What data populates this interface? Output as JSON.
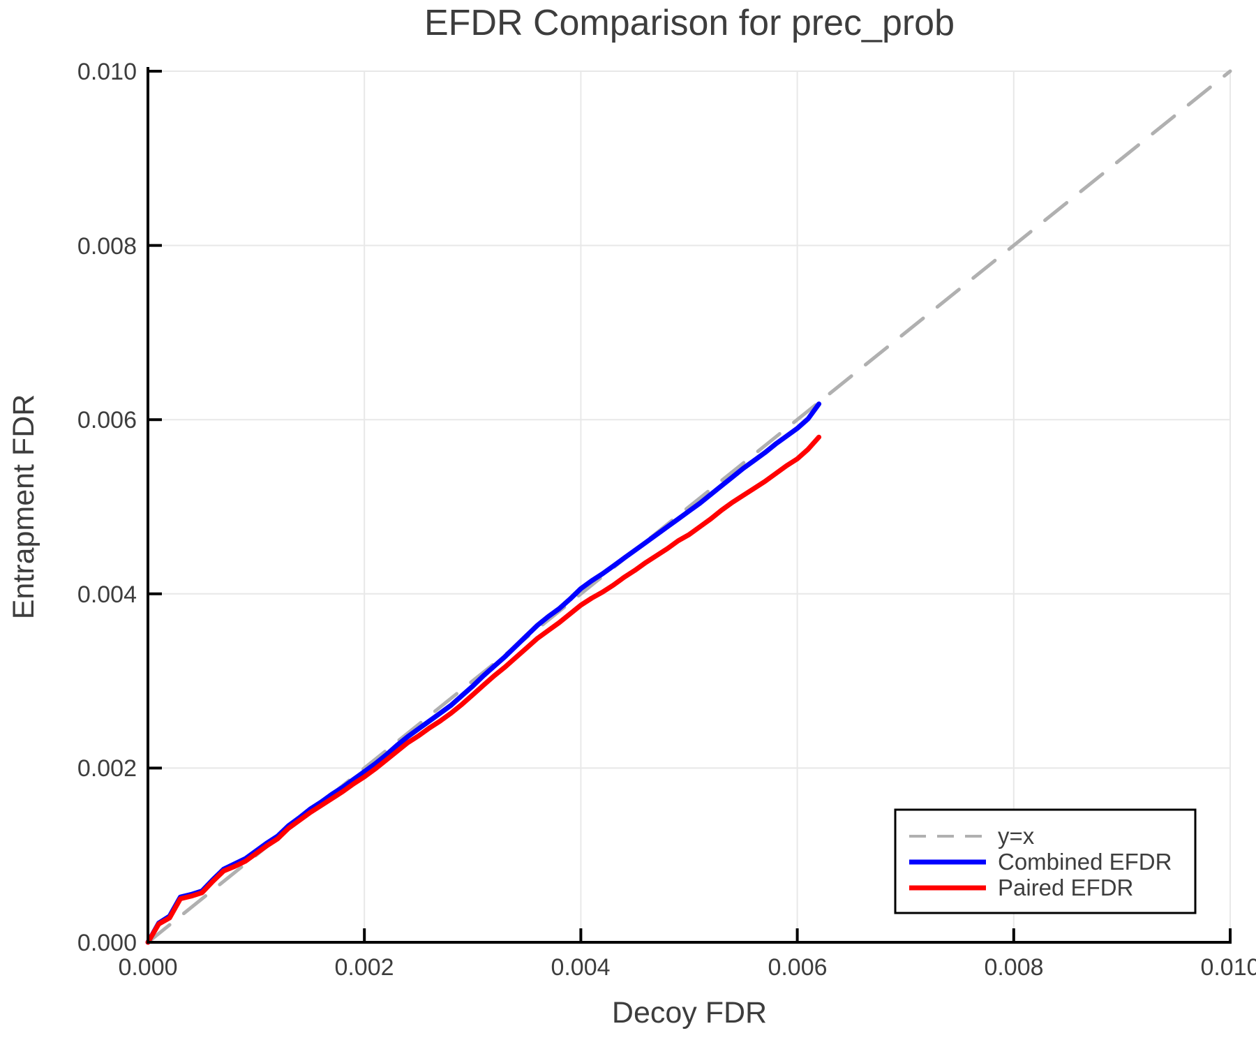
{
  "page": {
    "background": "#ffffff"
  },
  "chart_data": {
    "type": "line",
    "title": "EFDR Comparison for prec_prob",
    "xlabel": "Decoy FDR",
    "ylabel": "Entrapment FDR",
    "xlim": [
      0,
      0.01
    ],
    "ylim": [
      0,
      0.01
    ],
    "x_ticks": [
      0,
      0.002,
      0.004,
      0.006,
      0.008,
      0.01
    ],
    "x_tick_labels": [
      "0.000",
      "0.002",
      "0.004",
      "0.006",
      "0.008",
      "0.010"
    ],
    "y_ticks": [
      0,
      0.002,
      0.004,
      0.006,
      0.008,
      0.01
    ],
    "y_tick_labels": [
      "0.000",
      "0.002",
      "0.004",
      "0.006",
      "0.008",
      "0.010"
    ],
    "grid": true,
    "grid_color": "#e8e8e8",
    "identity_color": "#b0b0b0",
    "text_color": "#3d3d3d",
    "legend_position": "lower right",
    "series": [
      {
        "name": "y=x",
        "style": "dashed",
        "color": "#b0b0b0",
        "x": [
          0,
          0.01
        ],
        "y": [
          0,
          0.01
        ]
      },
      {
        "name": "Combined EFDR",
        "style": "solid",
        "color": "#0000ff",
        "x": [
          0,
          0.0001,
          0.0002,
          0.0003,
          0.0004,
          0.0005,
          0.0006,
          0.0007,
          0.0008,
          0.0009,
          0.001,
          0.0011,
          0.0012,
          0.0013,
          0.0014,
          0.0015,
          0.0016,
          0.0017,
          0.0018,
          0.0019,
          0.002,
          0.0021,
          0.0022,
          0.0023,
          0.0024,
          0.0025,
          0.0026,
          0.0027,
          0.0028,
          0.0029,
          0.003,
          0.0031,
          0.0032,
          0.0033,
          0.0034,
          0.0035,
          0.0036,
          0.0037,
          0.0038,
          0.0039,
          0.004,
          0.0041,
          0.0042,
          0.0043,
          0.0044,
          0.0045,
          0.0046,
          0.0047,
          0.0048,
          0.0049,
          0.005,
          0.0051,
          0.0052,
          0.0053,
          0.0054,
          0.0055,
          0.0056,
          0.0057,
          0.0058,
          0.0059,
          0.006,
          0.0061,
          0.0062
        ],
        "y": [
          0,
          0.00022,
          0.0003,
          0.00052,
          0.00055,
          0.00059,
          0.00072,
          0.00084,
          0.0009,
          0.00096,
          0.00105,
          0.00114,
          0.00122,
          0.00134,
          0.00143,
          0.00153,
          0.00161,
          0.0017,
          0.00178,
          0.00187,
          0.00196,
          0.00205,
          0.00215,
          0.00226,
          0.00236,
          0.00245,
          0.00254,
          0.00263,
          0.00272,
          0.00283,
          0.00294,
          0.00306,
          0.00317,
          0.00328,
          0.0034,
          0.00352,
          0.00364,
          0.00374,
          0.00383,
          0.00394,
          0.00406,
          0.00415,
          0.00423,
          0.00432,
          0.00441,
          0.0045,
          0.00459,
          0.00468,
          0.00477,
          0.00486,
          0.00495,
          0.00504,
          0.00514,
          0.00524,
          0.00534,
          0.00544,
          0.00553,
          0.00562,
          0.00572,
          0.00581,
          0.0059,
          0.00601,
          0.00618
        ]
      },
      {
        "name": "Paired EFDR",
        "style": "solid",
        "color": "#ff0000",
        "x": [
          0,
          0.0001,
          0.0002,
          0.0003,
          0.0004,
          0.0005,
          0.0006,
          0.0007,
          0.0008,
          0.0009,
          0.001,
          0.0011,
          0.0012,
          0.0013,
          0.0014,
          0.0015,
          0.0016,
          0.0017,
          0.0018,
          0.0019,
          0.002,
          0.0021,
          0.0022,
          0.0023,
          0.0024,
          0.0025,
          0.0026,
          0.0027,
          0.0028,
          0.0029,
          0.003,
          0.0031,
          0.0032,
          0.0033,
          0.0034,
          0.0035,
          0.0036,
          0.0037,
          0.0038,
          0.0039,
          0.004,
          0.0041,
          0.0042,
          0.0043,
          0.0044,
          0.0045,
          0.0046,
          0.0047,
          0.0048,
          0.0049,
          0.005,
          0.0051,
          0.0052,
          0.0053,
          0.0054,
          0.0055,
          0.0056,
          0.0057,
          0.0058,
          0.0059,
          0.006,
          0.0061,
          0.0062
        ],
        "y": [
          0,
          0.00021,
          0.00028,
          0.0005,
          0.00053,
          0.00057,
          0.0007,
          0.00082,
          0.00087,
          0.00093,
          0.00102,
          0.00111,
          0.00119,
          0.00131,
          0.0014,
          0.00149,
          0.00157,
          0.00165,
          0.00173,
          0.00182,
          0.0019,
          0.00199,
          0.00209,
          0.00219,
          0.00229,
          0.00237,
          0.00246,
          0.00254,
          0.00263,
          0.00273,
          0.00284,
          0.00295,
          0.00306,
          0.00316,
          0.00327,
          0.00338,
          0.00349,
          0.00358,
          0.00367,
          0.00377,
          0.00387,
          0.00395,
          0.00402,
          0.0041,
          0.00419,
          0.00427,
          0.00436,
          0.00444,
          0.00452,
          0.00461,
          0.00468,
          0.00477,
          0.00486,
          0.00496,
          0.00505,
          0.00513,
          0.00521,
          0.00529,
          0.00538,
          0.00547,
          0.00555,
          0.00566,
          0.0058
        ]
      }
    ]
  }
}
